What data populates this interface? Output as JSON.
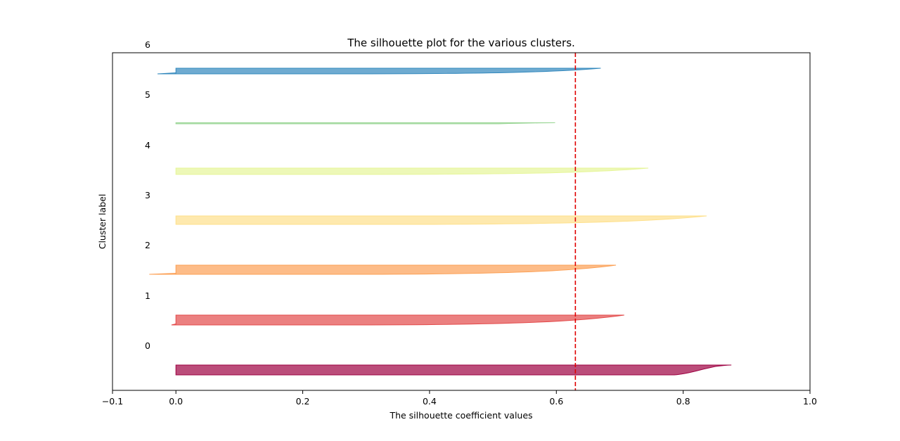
{
  "chart_data": {
    "type": "area",
    "title": "The silhouette plot for the various clusters.",
    "xlabel": "The silhouette coefficient values",
    "ylabel": "Cluster label",
    "xlim": [
      -0.1,
      1.0
    ],
    "xticks": [
      -0.1,
      0.0,
      0.2,
      0.4,
      0.6,
      0.8,
      1.0
    ],
    "xtick_labels": [
      "−0.1",
      "0.0",
      "0.2",
      "0.4",
      "0.6",
      "0.8",
      "1.0"
    ],
    "grid": false,
    "average_silhouette": 0.63,
    "average_line_color": "#e00000",
    "cluster_labels": [
      "0",
      "1",
      "2",
      "3",
      "4",
      "5",
      "6"
    ],
    "clusters": [
      {
        "label": "0",
        "color": "#9e0142",
        "max": 0.876,
        "min": 0.0,
        "shape": "sharp",
        "alpha": 0.7
      },
      {
        "label": "1",
        "color": "#e34a4a",
        "max": 0.707,
        "min": -0.007,
        "shape": "concave",
        "alpha": 0.7
      },
      {
        "label": "2",
        "color": "#fca055",
        "max": 0.694,
        "min": -0.042,
        "shape": "concave",
        "alpha": 0.7
      },
      {
        "label": "3",
        "color": "#fee08b",
        "max": 0.837,
        "min": 0.0,
        "shape": "concave",
        "alpha": 0.7
      },
      {
        "label": "4",
        "color": "#e6f598",
        "max": 0.745,
        "min": 0.0,
        "shape": "concave",
        "alpha": 0.7
      },
      {
        "label": "5",
        "color": "#99d594",
        "max": 0.598,
        "min": 0.0,
        "shape": "thin",
        "alpha": 0.7
      },
      {
        "label": "6",
        "color": "#3288bd",
        "max": 0.67,
        "min": -0.029,
        "shape": "concave",
        "alpha": 0.7
      }
    ]
  }
}
